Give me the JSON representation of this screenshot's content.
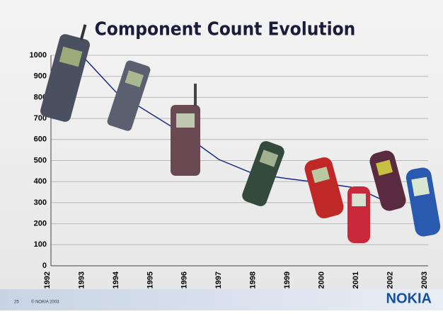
{
  "chart_data": {
    "type": "line",
    "title": "Component Count Evolution",
    "categories": [
      "1992",
      "1993",
      "1994",
      "1995",
      "1996",
      "1997",
      "1998",
      "1999",
      "2000",
      "2001",
      "2002",
      "2003"
    ],
    "series": [
      {
        "name": "Component count",
        "color": "#1a2a80",
        "values": [
          null,
          1000,
          825,
          724,
          623,
          505,
          438,
          414,
          394,
          370,
          296,
          null
        ]
      }
    ],
    "ylim": [
      0,
      1000
    ],
    "yticks": [
      0,
      100,
      200,
      300,
      400,
      500,
      600,
      700,
      800,
      900,
      1000
    ],
    "grid": true
  },
  "footer": {
    "page": "25",
    "copyright": "© NOKIA 2003",
    "logo": "NOKIA"
  }
}
